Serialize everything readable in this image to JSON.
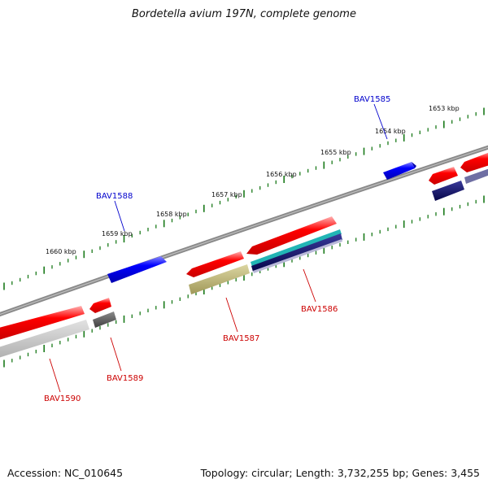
{
  "title": "Bordetella avium 197N, complete genome",
  "accession": "Accession: NC_010645",
  "topology": "Topology: circular; Length: 3,732,255 bp; Genes: 3,455",
  "ticks": [
    "1653 kbp",
    "1654 kbp",
    "1655 kbp",
    "1656 kbp",
    "1657 kbp",
    "1658 kbp",
    "1659 kbp",
    "1660 kbp"
  ],
  "genes": {
    "forward": [
      {
        "label": "BAV1585",
        "color": "#0000cc"
      },
      {
        "label": "BAV1588",
        "color": "#0000cc"
      }
    ],
    "reverse": [
      {
        "label": "BAV1586",
        "color": "#cc0000"
      },
      {
        "label": "BAV1587",
        "color": "#cc0000"
      },
      {
        "label": "BAV1589",
        "color": "#cc0000"
      },
      {
        "label": "BAV1590",
        "color": "#cc0000"
      }
    ]
  },
  "colors": {
    "backbone": "#808080",
    "tick": "#1a7a1a",
    "forward_gene": "#0000ff",
    "reverse_gene": "#ff0000",
    "track_olive": "#b5ad6e",
    "track_teal": "#22b5b5",
    "track_navy": "#0c0c6e",
    "track_slate": "#6f6fa3",
    "track_gray": "#c4c4c4",
    "track_darkgray": "#5a5a5a"
  }
}
